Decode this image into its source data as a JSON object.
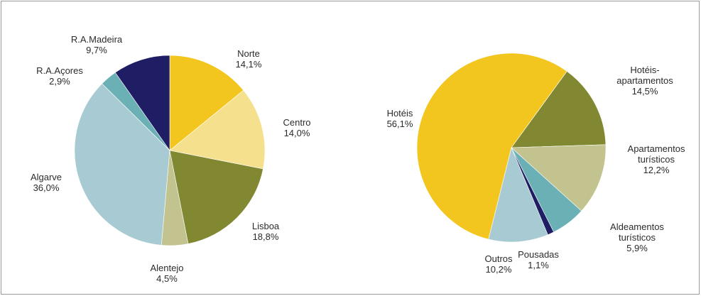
{
  "chart_data": [
    {
      "type": "pie",
      "title": "",
      "slices": [
        {
          "name": "Norte",
          "value": 14.1,
          "label": "14,1%",
          "color": "#f3c51f"
        },
        {
          "name": "Centro",
          "value": 14.0,
          "label": "14,0%",
          "color": "#f5e08d"
        },
        {
          "name": "Lisboa",
          "value": 18.8,
          "label": "18,8%",
          "color": "#818831"
        },
        {
          "name": "Alentejo",
          "value": 4.5,
          "label": "4,5%",
          "color": "#c2c38f"
        },
        {
          "name": "Algarve",
          "value": 36.0,
          "label": "36,0%",
          "color": "#a8cbd3"
        },
        {
          "name": "R.A.Açores",
          "value": 2.9,
          "label": "2,9%",
          "color": "#6ab0b5"
        },
        {
          "name": "R.A.Madeira",
          "value": 9.7,
          "label": "9,7%",
          "color": "#1f1d63"
        }
      ]
    },
    {
      "type": "pie",
      "title": "",
      "slices": [
        {
          "name": "Hotéis-apartamentos",
          "name_lines": [
            "Hotéis-",
            "apartamentos"
          ],
          "value": 14.5,
          "label": "14,5%",
          "color": "#818831"
        },
        {
          "name": "Apartamentos turísticos",
          "name_lines": [
            "Apartamentos",
            "turísticos"
          ],
          "value": 12.2,
          "label": "12,2%",
          "color": "#c2c38f"
        },
        {
          "name": "Aldeamentos turísticos",
          "name_lines": [
            "Aldeamentos",
            "turísticos"
          ],
          "value": 5.9,
          "label": "5,9%",
          "color": "#6ab0b5"
        },
        {
          "name": "Pousadas",
          "name_lines": [
            "Pousadas"
          ],
          "value": 1.1,
          "label": "1,1%",
          "color": "#1f1d63"
        },
        {
          "name": "Outros",
          "name_lines": [
            "Outros"
          ],
          "value": 10.2,
          "label": "10,2%",
          "color": "#a8cbd3"
        },
        {
          "name": "Hotéis",
          "name_lines": [
            "Hotéis"
          ],
          "value": 56.1,
          "label": "56,1%",
          "color": "#f3c51f"
        }
      ]
    }
  ]
}
